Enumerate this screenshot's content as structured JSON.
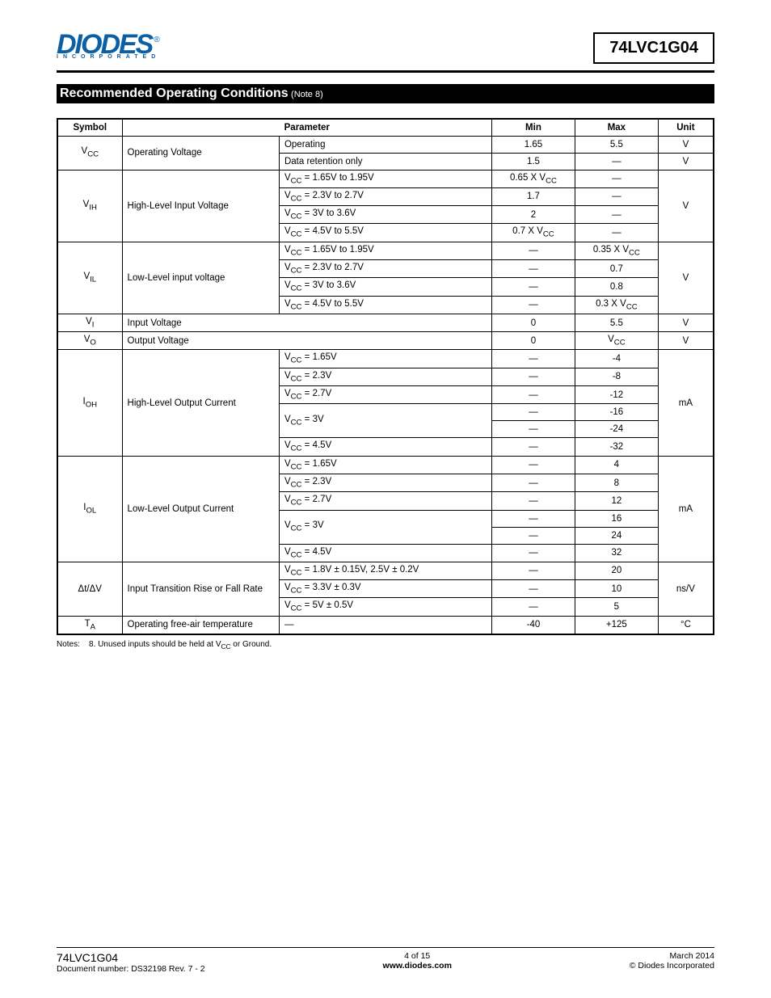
{
  "header": {
    "logo_text": "DIODES",
    "logo_subtitle": "INCORPORATED",
    "part_number": "74LVC1G04"
  },
  "section": {
    "title": "Recommended Operating Conditions",
    "note_ref": "(Note 8)"
  },
  "table": {
    "headers": [
      "Symbol",
      "Parameter",
      "Min",
      "Max",
      "Unit"
    ],
    "colors": {
      "border": "#000000",
      "header_bg": "#ffffff",
      "text": "#000000"
    }
  },
  "rows": {
    "vcc": {
      "symbol_html": "V<sub>CC</sub>",
      "param": "Operating Voltage",
      "sub": [
        {
          "cond": "Operating",
          "min": "1.65",
          "max": "5.5",
          "unit": "V"
        },
        {
          "cond": "Data retention only",
          "min": "1.5",
          "max": "—",
          "unit": "V"
        }
      ]
    },
    "vih": {
      "symbol_html": "V<sub>IH</sub>",
      "param": "High-Level Input Voltage",
      "unit": "V",
      "sub": [
        {
          "cond_html": "V<sub>CC</sub> = 1.65V to 1.95V",
          "min_html": "0.65 X V<sub>CC</sub>",
          "max": "—"
        },
        {
          "cond_html": "V<sub>CC</sub> = 2.3V to 2.7V",
          "min": "1.7",
          "max": "—"
        },
        {
          "cond_html": "V<sub>CC</sub> = 3V to 3.6V",
          "min": "2",
          "max": "—"
        },
        {
          "cond_html": "V<sub>CC</sub> = 4.5V to 5.5V",
          "min_html": "0.7 X V<sub>CC</sub>",
          "max": "—"
        }
      ]
    },
    "vil": {
      "symbol_html": "V<sub>IL</sub>",
      "param": "Low-Level input voltage",
      "unit": "V",
      "sub": [
        {
          "cond_html": "V<sub>CC</sub> = 1.65V to 1.95V",
          "min": "—",
          "max_html": "0.35 X V<sub>CC</sub>"
        },
        {
          "cond_html": "V<sub>CC</sub> = 2.3V to 2.7V",
          "min": "—",
          "max": "0.7"
        },
        {
          "cond_html": "V<sub>CC</sub> = 3V to 3.6V",
          "min": "—",
          "max": "0.8"
        },
        {
          "cond_html": "V<sub>CC</sub> = 4.5V to 5.5V",
          "min": "—",
          "max_html": "0.3 X V<sub>CC</sub>"
        }
      ]
    },
    "vi": {
      "symbol_html": "V<sub>I</sub>",
      "param": "Input Voltage",
      "min": "0",
      "max": "5.5",
      "unit": "V"
    },
    "vo": {
      "symbol_html": "V<sub>O</sub>",
      "param": "Output Voltage",
      "min": "0",
      "max_html": "V<sub>CC</sub>",
      "unit": "V"
    },
    "ioh": {
      "symbol_html": "I<sub>OH</sub>",
      "param": "High-Level Output Current",
      "unit": "mA",
      "sub": [
        {
          "cond_html": "V<sub>CC</sub> = 1.65V",
          "min": "—",
          "max": "-4"
        },
        {
          "cond_html": "V<sub>CC</sub> = 2.3V",
          "min": "—",
          "max": "-8"
        },
        {
          "cond_html": "V<sub>CC</sub> = 2.7V",
          "min": "—",
          "max": "-12"
        },
        {
          "cond_html": "V<sub>CC</sub> = 3V",
          "rowspan": 2,
          "min": "—",
          "max": "-16"
        },
        {
          "min": "—",
          "max": "-24"
        },
        {
          "cond_html": "V<sub>CC</sub> = 4.5V",
          "min": "—",
          "max": "-32"
        }
      ]
    },
    "iol": {
      "symbol_html": "I<sub>OL</sub>",
      "param": "Low-Level Output Current",
      "unit": "mA",
      "sub": [
        {
          "cond_html": "V<sub>CC</sub> = 1.65V",
          "min": "—",
          "max": "4"
        },
        {
          "cond_html": "V<sub>CC</sub> = 2.3V",
          "min": "—",
          "max": "8"
        },
        {
          "cond_html": "V<sub>CC</sub> = 2.7V",
          "min": "—",
          "max": "12"
        },
        {
          "cond_html": "V<sub>CC</sub> = 3V",
          "rowspan": 2,
          "min": "—",
          "max": "16"
        },
        {
          "min": "—",
          "max": "24"
        },
        {
          "cond_html": "V<sub>CC</sub> = 4.5V",
          "min": "—",
          "max": "32"
        }
      ]
    },
    "dtdv": {
      "symbol": "Δt/ΔV",
      "param": "Input Transition Rise or Fall Rate",
      "unit": "ns/V",
      "sub": [
        {
          "cond_html": "V<sub>CC</sub> = 1.8V ± 0.15V, 2.5V ± 0.2V",
          "min": "—",
          "max": "20"
        },
        {
          "cond_html": "V<sub>CC</sub> = 3.3V ± 0.3V",
          "min": "—",
          "max": "10"
        },
        {
          "cond_html": "V<sub>CC</sub> = 5V ± 0.5V",
          "min": "—",
          "max": "5"
        }
      ]
    },
    "ta": {
      "symbol_html": "T<sub>A</sub>",
      "param": "Operating free-air temperature",
      "cond": "—",
      "min": "-40",
      "max": "+125",
      "unit": "°C"
    }
  },
  "notes": {
    "label": "Notes:",
    "num": "8.",
    "text_html": "Unused inputs should be held at V<sub>CC</sub> or Ground."
  },
  "footer": {
    "part": "74LVC1G04",
    "docnum": "Document number: DS32198 Rev. 7 - 2",
    "page": "4 of 15",
    "url": "www.diodes.com",
    "date": "March 2014",
    "copyright": "© Diodes Incorporated"
  }
}
